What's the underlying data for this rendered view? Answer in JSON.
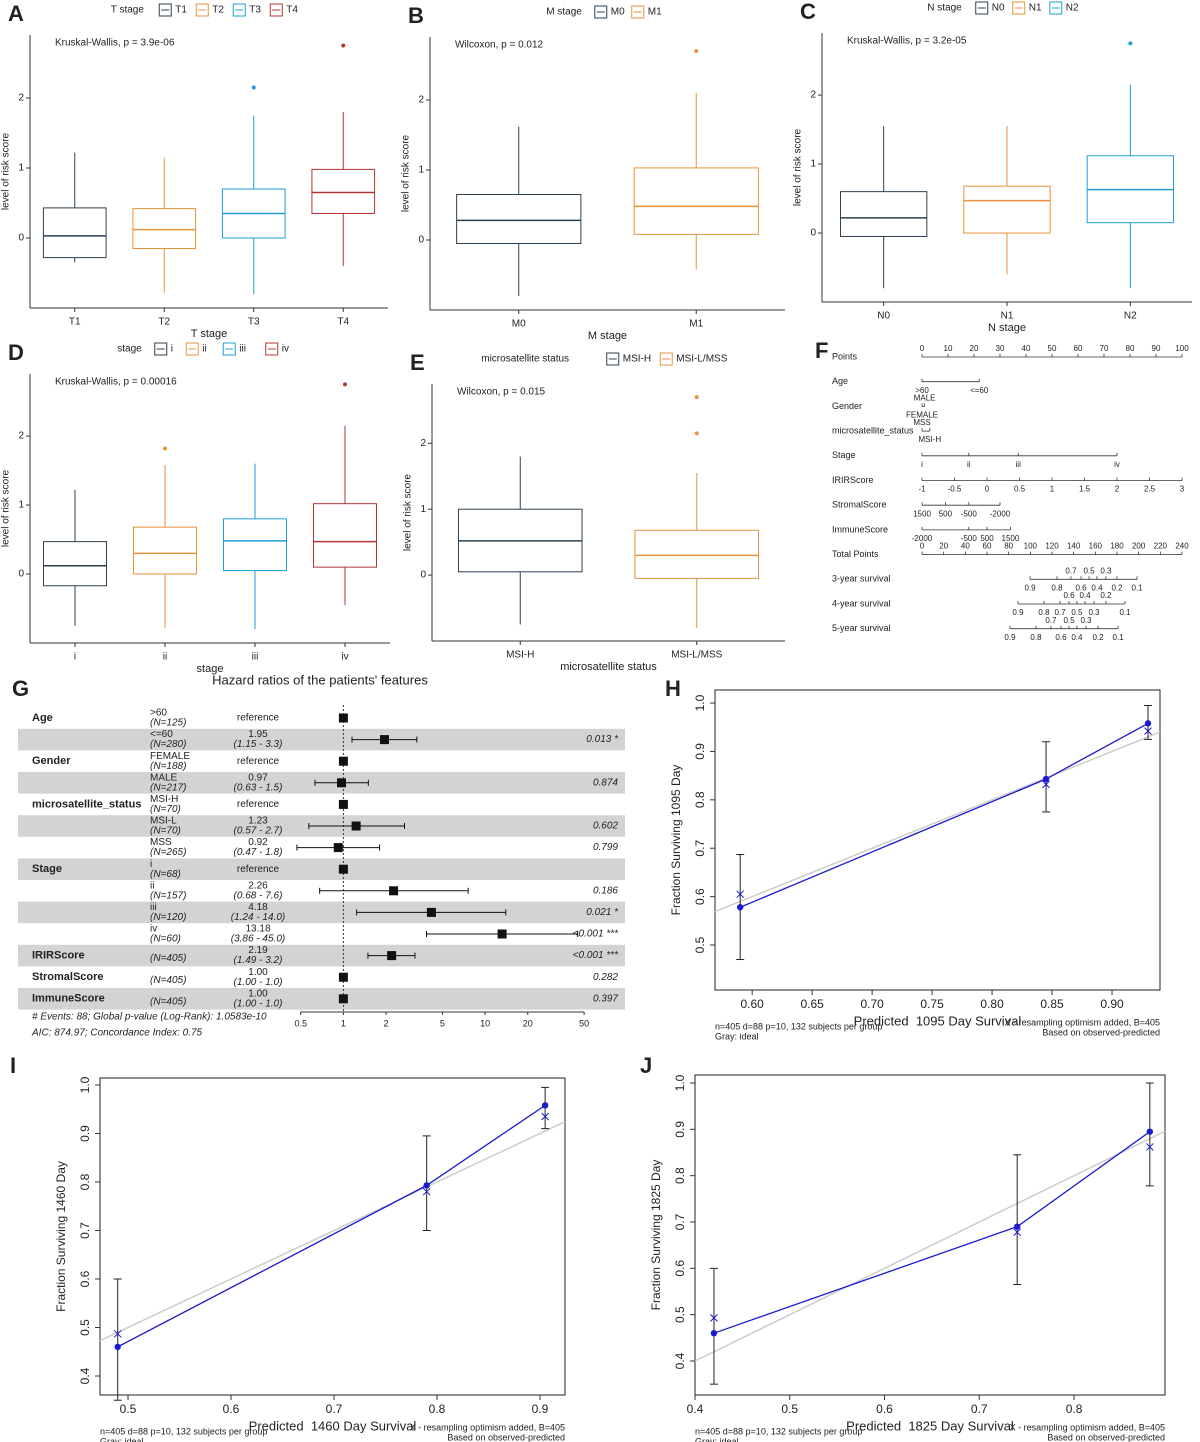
{
  "chart_data": [
    {
      "type": "box",
      "panel": "A",
      "legend_title": "T stage",
      "annotation": "Kruskal-Wallis, p = 3.9e-06",
      "x_label": "T stage",
      "y_label": "level of risk score",
      "categories": [
        "T1",
        "T2",
        "T3",
        "T4"
      ],
      "colors": [
        "#2d4050",
        "#e8923c",
        "#1f9fd5",
        "#b43434"
      ],
      "min": [
        -0.35,
        -0.78,
        -0.8,
        -0.4
      ],
      "q1": [
        -0.28,
        -0.15,
        0.0,
        0.35
      ],
      "median": [
        0.03,
        0.12,
        0.35,
        0.65
      ],
      "q3": [
        0.43,
        0.42,
        0.7,
        0.98
      ],
      "max": [
        1.22,
        1.15,
        1.75,
        1.8
      ],
      "outliers": [
        [],
        [],
        [
          2.15
        ],
        [
          2.75
        ]
      ],
      "ylim": [
        -1.0,
        2.9
      ],
      "yticks": [
        0,
        1,
        2
      ]
    },
    {
      "type": "box",
      "panel": "B",
      "legend_title": "M stage",
      "annotation": "Wilcoxon, p = 0.012",
      "x_label": "M stage",
      "y_label": "level of risk score",
      "categories": [
        "M0",
        "M1"
      ],
      "colors": [
        "#2d4050",
        "#e8923c"
      ],
      "min": [
        -0.8,
        -0.42
      ],
      "q1": [
        -0.05,
        0.08
      ],
      "median": [
        0.28,
        0.48
      ],
      "q3": [
        0.65,
        1.03
      ],
      "max": [
        1.62,
        2.1
      ],
      "outliers": [
        [],
        [
          2.7
        ]
      ],
      "ylim": [
        -1.0,
        2.9
      ],
      "yticks": [
        0,
        1,
        2
      ]
    },
    {
      "type": "box",
      "panel": "C",
      "legend_title": "N stage",
      "annotation": "Kruskal-Wallis, p = 3.2e-05",
      "x_label": "N stage",
      "y_label": "level of risk score",
      "categories": [
        "N0",
        "N1",
        "N2"
      ],
      "colors": [
        "#2d4050",
        "#e8923c",
        "#1f9fd5"
      ],
      "min": [
        -0.8,
        -0.6,
        -0.8
      ],
      "q1": [
        -0.05,
        0.0,
        0.15
      ],
      "median": [
        0.22,
        0.47,
        0.63
      ],
      "q3": [
        0.6,
        0.68,
        1.12
      ],
      "max": [
        1.55,
        1.55,
        2.15
      ],
      "outliers": [
        [],
        [],
        [
          2.75
        ]
      ],
      "ylim": [
        -1.0,
        2.9
      ],
      "yticks": [
        0,
        1,
        2
      ]
    },
    {
      "type": "box",
      "panel": "D",
      "legend_title": "stage",
      "annotation": "Kruskal-Wallis, p = 0.00016",
      "x_label": "stage",
      "y_label": "level of risk score",
      "categories": [
        "i",
        "ii",
        "iii",
        "iv"
      ],
      "colors": [
        "#2d4050",
        "#e8923c",
        "#1f9fd5",
        "#b43434"
      ],
      "min": [
        -0.75,
        -0.78,
        -0.8,
        -0.45
      ],
      "q1": [
        -0.17,
        0.0,
        0.05,
        0.1
      ],
      "median": [
        0.12,
        0.3,
        0.48,
        0.47
      ],
      "q3": [
        0.47,
        0.68,
        0.8,
        1.02
      ],
      "max": [
        1.22,
        1.58,
        1.6,
        2.15
      ],
      "outliers": [
        [],
        [
          1.82
        ],
        [],
        [
          2.75
        ]
      ],
      "ylim": [
        -1.0,
        2.9
      ],
      "yticks": [
        0,
        1,
        2
      ]
    },
    {
      "type": "box",
      "panel": "E",
      "legend_title": "microsatellite status",
      "annotation": "Wilcoxon, p = 0.015",
      "x_label": "microsatellite status",
      "y_label": "level of risk score",
      "categories": [
        "MSI-H",
        "MSI-L/MSS"
      ],
      "colors": [
        "#2d4050",
        "#e8923c"
      ],
      "min": [
        -0.75,
        -0.8
      ],
      "q1": [
        0.05,
        -0.05
      ],
      "median": [
        0.52,
        0.3
      ],
      "q3": [
        1.0,
        0.68
      ],
      "max": [
        1.8,
        1.55
      ],
      "outliers": [
        [],
        [
          2.15,
          2.7
        ]
      ],
      "ylim": [
        -1.0,
        2.9
      ],
      "yticks": [
        0,
        1,
        2
      ]
    },
    {
      "type": "nomogram",
      "panel": "F",
      "rows": [
        {
          "name": "Points",
          "scale": "points",
          "ticks": [
            0,
            10,
            20,
            30,
            40,
            50,
            60,
            70,
            80,
            90,
            100
          ]
        },
        {
          "name": "Age",
          "scale": "points",
          "ticks": [
            {
              "value": 0,
              "label": ">60"
            },
            {
              "value": 22,
              "label": "<=60"
            }
          ]
        },
        {
          "name": "Gender",
          "scale": "points",
          "ticks": [
            {
              "value": 0,
              "label": "FEMALE"
            },
            {
              "value": 1,
              "label": "MALE"
            }
          ]
        },
        {
          "name": "microsatellite_status",
          "scale": "points",
          "ticks": [
            {
              "value": 3,
              "label": "MSI-H"
            },
            {
              "value": 0,
              "label": "MSS"
            }
          ]
        },
        {
          "name": "Stage",
          "scale": "points",
          "ticks": [
            {
              "value": 0,
              "label": "i"
            },
            {
              "value": 18,
              "label": "ii"
            },
            {
              "value": 37,
              "label": "iii"
            },
            {
              "value": 75,
              "label": "iv"
            }
          ]
        },
        {
          "name": "IRIRScore",
          "scale": "points",
          "ticks": [
            {
              "value": 0,
              "label": "-1"
            },
            {
              "value": 12.5,
              "label": "-0.5"
            },
            {
              "value": 25,
              "label": "0"
            },
            {
              "value": 37.5,
              "label": "0.5"
            },
            {
              "value": 50,
              "label": "1"
            },
            {
              "value": 62.5,
              "label": "1.5"
            },
            {
              "value": 75,
              "label": "2"
            },
            {
              "value": 87.5,
              "label": "2.5"
            },
            {
              "value": 100,
              "label": "3"
            }
          ]
        },
        {
          "name": "StromalScore",
          "scale": "points",
          "ticks": [
            {
              "value": 0,
              "label": "1500"
            },
            {
              "value": 9,
              "label": "500"
            },
            {
              "value": 18,
              "label": "-500"
            },
            {
              "value": 30,
              "label": "-2000"
            }
          ]
        },
        {
          "name": "ImmuneScore",
          "scale": "points",
          "ticks": [
            {
              "value": 0,
              "label": "-2000"
            },
            {
              "value": 18,
              "label": "-500"
            },
            {
              "value": 25,
              "label": "500"
            },
            {
              "value": 34,
              "label": "1500"
            }
          ]
        },
        {
          "name": "Total Points",
          "scale": "total",
          "ticks": [
            0,
            20,
            40,
            60,
            80,
            100,
            120,
            140,
            160,
            180,
            200,
            220,
            240
          ]
        },
        {
          "name": "3-year survival",
          "scale": "total",
          "ticks": [
            {
              "value": 99.7,
              "label": "0.9"
            },
            {
              "value": 124.6,
              "label": "0.8"
            },
            {
              "value": 137.5,
              "label": "0.7"
            },
            {
              "value": 146.8,
              "label": "0.6"
            },
            {
              "value": 154.2,
              "label": "0.5"
            },
            {
              "value": 161.5,
              "label": "0.4"
            },
            {
              "value": 169.8,
              "label": "0.3"
            },
            {
              "value": 180,
              "label": "0.2"
            },
            {
              "value": 198.5,
              "label": "0.1"
            }
          ]
        },
        {
          "name": "4-year survival",
          "scale": "total",
          "ticks": [
            {
              "value": 88.6,
              "label": "0.9"
            },
            {
              "value": 112.6,
              "label": "0.8"
            },
            {
              "value": 127.4,
              "label": "0.7"
            },
            {
              "value": 135.7,
              "label": "0.6"
            },
            {
              "value": 143,
              "label": "0.5"
            },
            {
              "value": 150.5,
              "label": "0.4"
            },
            {
              "value": 158.8,
              "label": "0.3"
            },
            {
              "value": 169.8,
              "label": "0.2"
            },
            {
              "value": 187.4,
              "label": "0.1"
            }
          ]
        },
        {
          "name": "5-year survival",
          "scale": "total",
          "ticks": [
            {
              "value": 81.2,
              "label": "0.9"
            },
            {
              "value": 105.2,
              "label": "0.8"
            },
            {
              "value": 119,
              "label": "0.7"
            },
            {
              "value": 128.3,
              "label": "0.6"
            },
            {
              "value": 135.7,
              "label": "0.5"
            },
            {
              "value": 143,
              "label": "0.4"
            },
            {
              "value": 151.4,
              "label": "0.3"
            },
            {
              "value": 162.5,
              "label": "0.2"
            },
            {
              "value": 181,
              "label": "0.1"
            }
          ]
        }
      ]
    },
    {
      "type": "forest",
      "panel": "G",
      "title": "Hazard ratios of the patients' features",
      "log": true,
      "xlim": [
        0.42,
        55
      ],
      "xticks": [
        0.5,
        1,
        2,
        5,
        10,
        20,
        50
      ],
      "notes": [
        "# Events: 88; Global p-value (Log-Rank): 1.0583e-10",
        "AIC: 874.97; Concordance Index: 0.75"
      ],
      "rows": [
        {
          "variable": "Age",
          "level": ">60",
          "n": "(N=125)",
          "estimate": 1,
          "lower": null,
          "upper": null,
          "estimate_text": "reference",
          "ci_text": null,
          "p_text": null
        },
        {
          "variable": null,
          "level": "<=60",
          "n": "(N=280)",
          "estimate": 1.95,
          "lower": 1.15,
          "upper": 3.3,
          "estimate_text": "1.95",
          "ci_text": "(1.15 - 3.3)",
          "p_text": "0.013 *"
        },
        {
          "variable": "Gender",
          "level": "FEMALE",
          "n": "(N=188)",
          "estimate": 1,
          "lower": null,
          "upper": null,
          "estimate_text": "reference",
          "ci_text": null,
          "p_text": null
        },
        {
          "variable": null,
          "level": "MALE",
          "n": "(N=217)",
          "estimate": 0.97,
          "lower": 0.63,
          "upper": 1.5,
          "estimate_text": "0.97",
          "ci_text": "(0.63 - 1.5)",
          "p_text": "0.874"
        },
        {
          "variable": "microsatellite_status",
          "level": "MSI-H",
          "n": "(N=70)",
          "estimate": 1,
          "lower": null,
          "upper": null,
          "estimate_text": "reference",
          "ci_text": null,
          "p_text": null
        },
        {
          "variable": null,
          "level": "MSI-L",
          "n": "(N=70)",
          "estimate": 1.23,
          "lower": 0.57,
          "upper": 2.7,
          "estimate_text": "1.23",
          "ci_text": "(0.57 - 2.7)",
          "p_text": "0.602"
        },
        {
          "variable": null,
          "level": "MSS",
          "n": "(N=265)",
          "estimate": 0.92,
          "lower": 0.47,
          "upper": 1.8,
          "estimate_text": "0.92",
          "ci_text": "(0.47 - 1.8)",
          "p_text": "0.799"
        },
        {
          "variable": "Stage",
          "level": "i",
          "n": "(N=68)",
          "estimate": 1,
          "lower": null,
          "upper": null,
          "estimate_text": "reference",
          "ci_text": null,
          "p_text": null
        },
        {
          "variable": null,
          "level": "ii",
          "n": "(N=157)",
          "estimate": 2.26,
          "lower": 0.68,
          "upper": 7.6,
          "estimate_text": "2.26",
          "ci_text": "(0.68 - 7.6)",
          "p_text": "0.186"
        },
        {
          "variable": null,
          "level": "iii",
          "n": "(N=120)",
          "estimate": 4.18,
          "lower": 1.24,
          "upper": 14.0,
          "estimate_text": "4.18",
          "ci_text": "(1.24 - 14.0)",
          "p_text": "0.021 *"
        },
        {
          "variable": null,
          "level": "iv",
          "n": "(N=60)",
          "estimate": 13.18,
          "lower": 3.86,
          "upper": 45.0,
          "estimate_text": "13.18",
          "ci_text": "(3.86 - 45.0)",
          "p_text": "<0.001 ***"
        },
        {
          "variable": "IRIRScore",
          "level": null,
          "n": "(N=405)",
          "estimate": 2.19,
          "lower": 1.49,
          "upper": 3.2,
          "estimate_text": "2.19",
          "ci_text": "(1.49 - 3.2)",
          "p_text": "<0.001 ***"
        },
        {
          "variable": "StromalScore",
          "level": null,
          "n": "(N=405)",
          "estimate": 1.0,
          "lower": 1.0,
          "upper": 1.0,
          "estimate_text": "1.00",
          "ci_text": "(1.00 - 1.0)",
          "p_text": "0.282"
        },
        {
          "variable": "ImmuneScore",
          "level": null,
          "n": "(N=405)",
          "estimate": 1.0,
          "lower": 1.0,
          "upper": 1.0,
          "estimate_text": "1.00",
          "ci_text": "(1.00 - 1.0)",
          "p_text": "0.397"
        }
      ]
    },
    {
      "type": "calibration",
      "panel": "H",
      "x_label": "Predicted  1095 Day Survival",
      "y_label": "Fraction Surviving 1095 Day",
      "color": "#1a1ad0",
      "ideal_color": "#cccccc",
      "xlim": [
        0.569,
        0.94
      ],
      "ylim": [
        0.407,
        1.027
      ],
      "xticks": [
        {
          "value": 0.6,
          "label": "0.60"
        },
        {
          "value": 0.65,
          "label": "0.65"
        },
        {
          "value": 0.7,
          "label": "0.70"
        },
        {
          "value": 0.75,
          "label": "0.75"
        },
        {
          "value": 0.8,
          "label": "0.80"
        },
        {
          "value": 0.85,
          "label": "0.85"
        },
        {
          "value": 0.9,
          "label": "0.90"
        }
      ],
      "yticks": [
        0.5,
        0.6,
        0.7,
        0.8,
        0.9,
        {
          "value": 1.0,
          "label": "1.0"
        }
      ],
      "predicted": [
        0.59,
        0.845,
        0.93
      ],
      "observed": [
        0.578,
        0.843,
        0.958
      ],
      "lower": [
        0.47,
        0.775,
        0.925
      ],
      "upper": [
        0.687,
        0.92,
        0.995
      ],
      "corrected": [
        0.605,
        0.832,
        0.942
      ],
      "notes_left": [
        "n=405 d=88 p=10, 132 subjects per group",
        "Gray: ideal"
      ],
      "notes_right": [
        "X - resampling optimism added, B=405",
        "Based on observed-predicted"
      ]
    },
    {
      "type": "calibration",
      "panel": "I",
      "x_label": "Predicted  1460 Day Survival",
      "y_label": "Fraction Surviving 1460 Day",
      "color": "#1a1ad0",
      "ideal_color": "#cccccc",
      "xlim": [
        0.4728,
        0.9243
      ],
      "ylim": [
        0.3608,
        1.0144
      ],
      "xticks": [
        0.5,
        0.6,
        0.7,
        0.8,
        0.9
      ],
      "yticks": [
        0.4,
        0.5,
        0.6,
        0.7,
        0.8,
        0.9,
        {
          "value": 1.0,
          "label": "1.0"
        }
      ],
      "predicted": [
        0.49,
        0.79,
        0.905
      ],
      "observed": [
        0.46,
        0.793,
        0.958
      ],
      "lower": [
        0.35,
        0.7,
        0.91
      ],
      "upper": [
        0.6,
        0.895,
        0.995
      ],
      "corrected": [
        0.487,
        0.78,
        0.935
      ],
      "notes_left": [
        "n=405 d=88 p=10, 132 subjects per group",
        "Gray: ideal"
      ],
      "notes_right": [
        "X - resampling optimism added, B=405",
        "Based on observed-predicted"
      ]
    },
    {
      "type": "calibration",
      "panel": "J",
      "x_label": "Predicted  1825 Day Survival",
      "y_label": "Fraction Surviving 1825 Day",
      "color": "#1a1ad0",
      "ideal_color": "#cccccc",
      "xlim": [
        0.4,
        0.896
      ],
      "ylim": [
        0.3266,
        1.0173
      ],
      "xticks": [
        0.4,
        0.5,
        0.6,
        0.7,
        0.8
      ],
      "yticks": [
        0.4,
        0.5,
        0.6,
        0.7,
        0.8,
        0.9,
        {
          "value": 1.0,
          "label": "1.0"
        }
      ],
      "predicted": [
        0.42,
        0.74,
        0.88
      ],
      "observed": [
        0.46,
        0.69,
        0.895
      ],
      "lower": [
        0.35,
        0.565,
        0.778
      ],
      "upper": [
        0.6,
        0.845,
        1.0
      ],
      "corrected": [
        0.493,
        0.678,
        0.862
      ],
      "notes_left": [
        "n=405 d=88 p=10, 132 subjects per group",
        "Gray: ideal"
      ],
      "notes_right": [
        "X - resampling optimism added, B=405",
        "Based on observed-predicted"
      ]
    }
  ]
}
